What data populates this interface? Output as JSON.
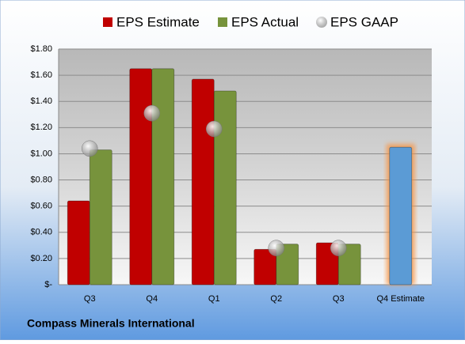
{
  "chart_data": {
    "type": "bar",
    "title": "Compass Minerals International",
    "categories": [
      "Q3",
      "Q4",
      "Q1",
      "Q2",
      "Q3",
      "Q4 Estimate"
    ],
    "series": [
      {
        "name": "EPS Estimate",
        "color": "#c00000",
        "values": [
          0.64,
          1.65,
          1.57,
          0.27,
          0.32,
          1.05
        ],
        "colors": [
          "#c00000",
          "#c00000",
          "#c00000",
          "#c00000",
          "#c00000",
          "#5b9bd5"
        ]
      },
      {
        "name": "EPS Actual",
        "color": "#77933c",
        "values": [
          1.03,
          1.65,
          1.48,
          0.31,
          0.31,
          null
        ]
      },
      {
        "name": "EPS GAAP",
        "color": "#a6a6a6",
        "marker": "circle",
        "values": [
          1.04,
          1.31,
          1.19,
          0.28,
          0.28,
          null
        ]
      }
    ],
    "ylim": [
      0,
      1.8
    ],
    "yticks": [
      {
        "value": 0,
        "label": "$-"
      },
      {
        "value": 0.2,
        "label": "$0.20"
      },
      {
        "value": 0.4,
        "label": "$0.40"
      },
      {
        "value": 0.6,
        "label": "$0.60"
      },
      {
        "value": 0.8,
        "label": "$0.80"
      },
      {
        "value": 1.0,
        "label": "$1.00"
      },
      {
        "value": 1.2,
        "label": "$1.20"
      },
      {
        "value": 1.4,
        "label": "$1.40"
      },
      {
        "value": 1.6,
        "label": "$1.60"
      },
      {
        "value": 1.8,
        "label": "$1.80"
      }
    ],
    "grid": true,
    "legend": "top"
  }
}
